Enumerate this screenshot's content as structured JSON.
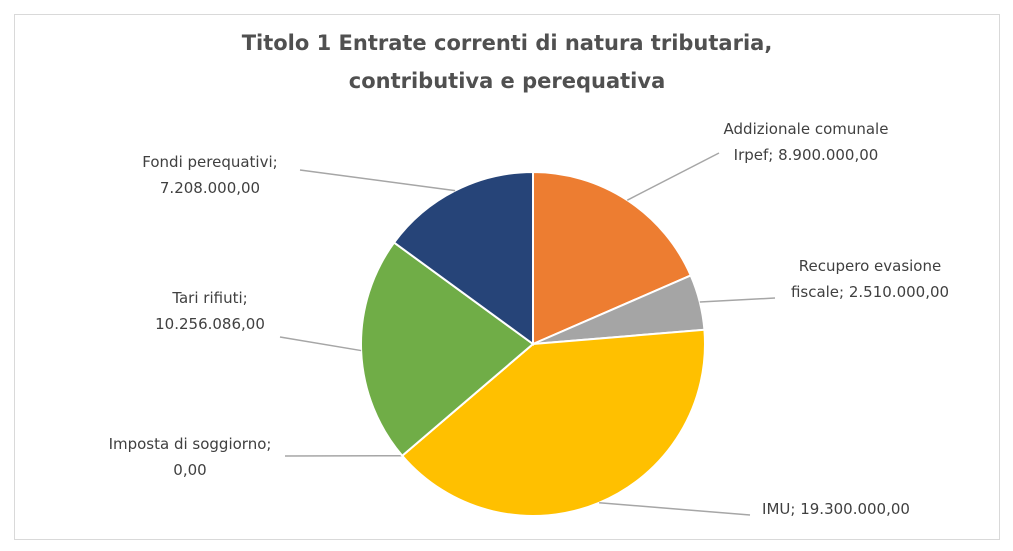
{
  "chart_data": {
    "type": "pie",
    "title": "Titolo 1  Entrate correnti di natura tributaria, contributiva e perequativa",
    "values": [
      8900000,
      2510000,
      19300000,
      0,
      10256086,
      7208000
    ],
    "value_labels": [
      "Addizionale comunale Irpef; 8.900.000,00",
      "Recupero evasione fiscale; 2.510.000,00",
      "IMU; 19.300.000,00",
      "Imposta di soggiorno; 0,00",
      "Tari rifiuti; 10.256.086,00",
      "Fondi perequativi; 7.208.000,00"
    ],
    "colors": [
      "#ED7D31",
      "#A5A5A5",
      "#FFC000",
      "#5B9BD5",
      "#70AD47",
      "#264478"
    ]
  }
}
